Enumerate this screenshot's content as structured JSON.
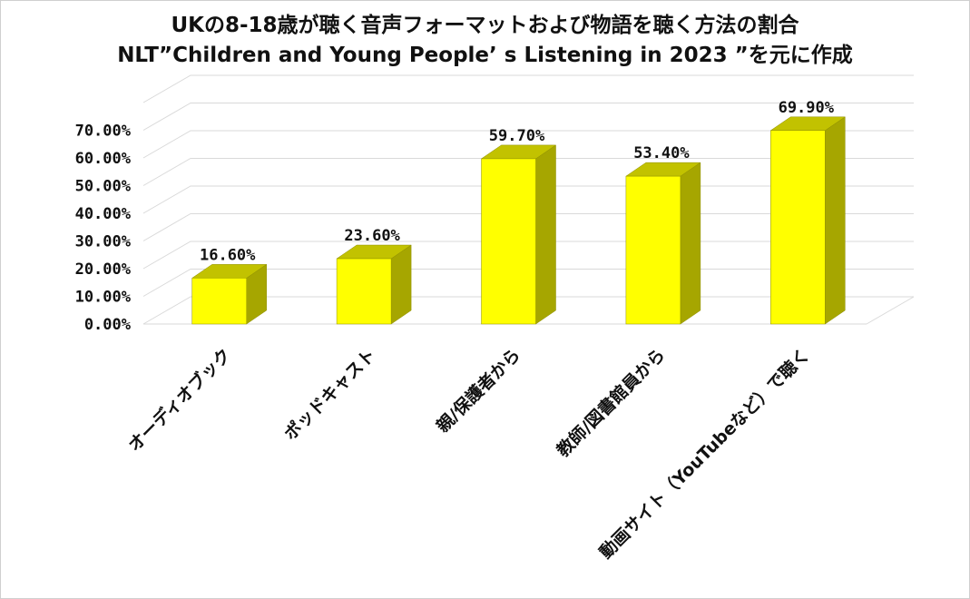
{
  "chart_data": {
    "type": "bar",
    "title": "UKの8-18歳が聴く音声フォーマットおよび物語を聴く方法の割合",
    "subtitle": "NLT”Children and Young People’ s Listening in 2023 ”を元に作成",
    "categories": [
      "オーディオブック",
      "ポッドキャスト",
      "親/保護者から",
      "教師/図書館員から",
      "動画サイト（YouTubeなど）で聴く"
    ],
    "values": [
      16.6,
      23.6,
      59.7,
      53.4,
      69.9
    ],
    "data_labels": [
      "16.60%",
      "23.60%",
      "59.70%",
      "53.40%",
      "69.90%"
    ],
    "y_ticks": [
      "0.00%",
      "10.00%",
      "20.00%",
      "30.00%",
      "40.00%",
      "50.00%",
      "60.00%",
      "70.00%"
    ],
    "ylim": [
      0,
      80
    ],
    "grid": true,
    "xlabel": "",
    "ylabel": "",
    "colors": {
      "bar_front": "#ffff00",
      "bar_top": "#c2c200",
      "bar_side": "#a6a600",
      "bar_edge": "#8f8f00",
      "grid": "#d9d9d9"
    }
  }
}
